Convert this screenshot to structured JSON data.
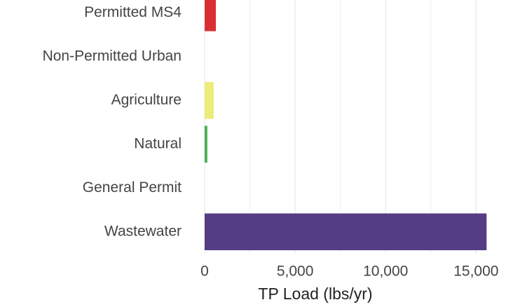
{
  "chart_data": {
    "type": "bar",
    "orientation": "horizontal",
    "categories": [
      "Permitted MS4",
      "Non-Permitted Urban",
      "Agriculture",
      "Natural",
      "General Permit",
      "Wastewater"
    ],
    "values": [
      620,
      0,
      500,
      150,
      0,
      15580
    ],
    "colors": [
      "#d92f33",
      "#f08a3c",
      "#ecec78",
      "#4caf50",
      "#3b8fa8",
      "#553d84"
    ],
    "xlabel": "TP Load (lbs/yr)",
    "xlim": [
      0,
      15800
    ],
    "xticks": [
      0,
      {
        "value": 5000,
        "label": "5,000"
      },
      {
        "value": 10000,
        "label": "10,000"
      },
      {
        "value": 15000,
        "label": "15,000"
      }
    ],
    "grid": true
  }
}
